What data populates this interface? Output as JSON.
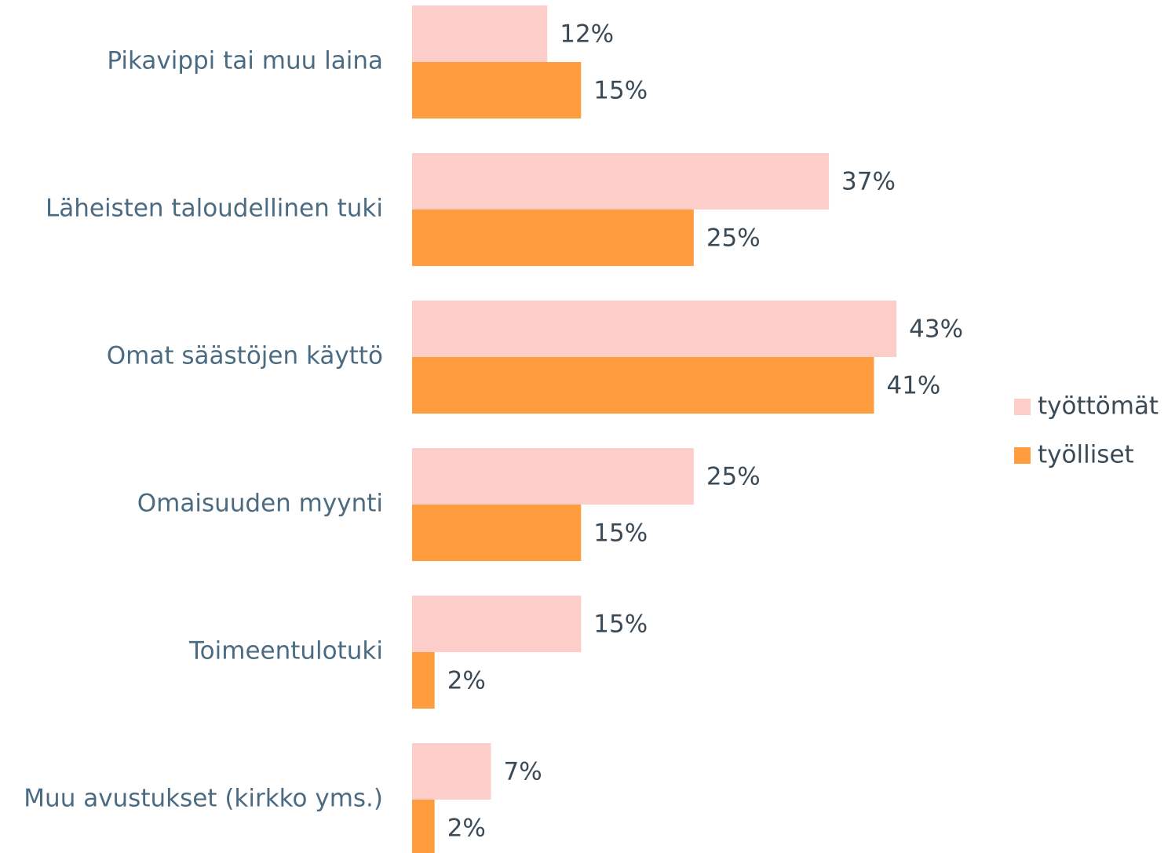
{
  "chart_data": {
    "type": "hbar",
    "categories": [
      "Pikavippi tai muu laina",
      "Läheisten taloudellinen tuki",
      "Omat säästöjen käyttö",
      "Omaisuuden myynti",
      "Toimeentulotuki",
      "Muu avustukset (kirkko yms.)"
    ],
    "series": [
      {
        "name": "työttömät",
        "color": "#fccdc9",
        "values": [
          12,
          37,
          43,
          25,
          15,
          7
        ],
        "value_labels": [
          "12%",
          "37%",
          "43%",
          "25%",
          "15%",
          "7%"
        ]
      },
      {
        "name": "työlliset",
        "color": "#ff9d3e",
        "values": [
          15,
          25,
          41,
          15,
          2,
          2
        ],
        "value_labels": [
          "15%",
          "25%",
          "41%",
          "15%",
          "2%",
          "2%"
        ]
      }
    ],
    "xlim": [
      0,
      68
    ],
    "legend": "right"
  }
}
